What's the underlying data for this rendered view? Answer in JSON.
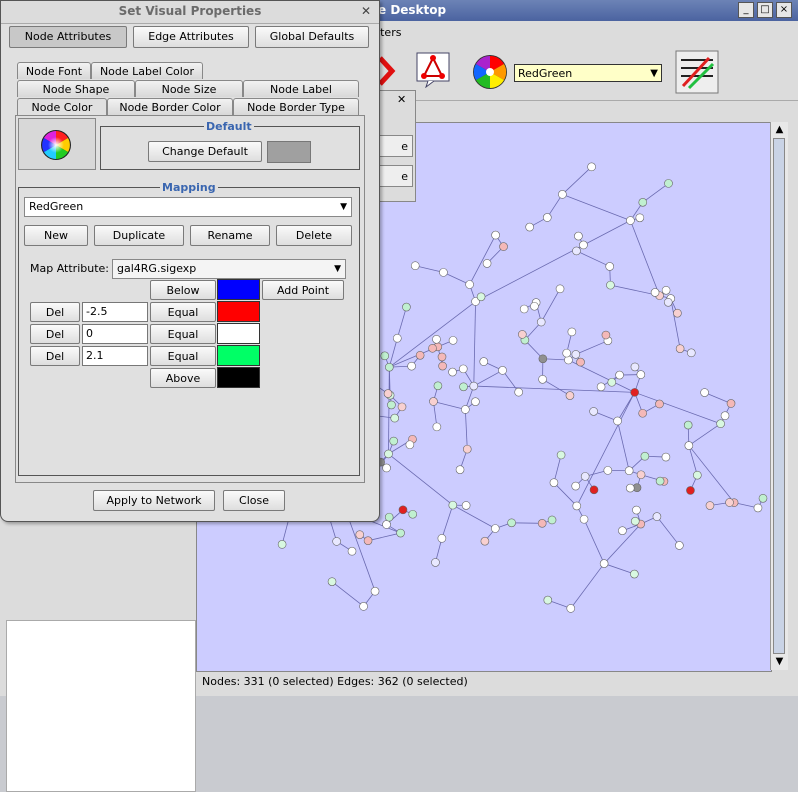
{
  "background_window": {
    "title": "e Desktop",
    "menu_item": "ilters",
    "visual_style": "RedGreen",
    "status": "Nodes: 331 (0 selected) Edges: 362 (0 selected)",
    "mini_dialog_buttons": [
      "e",
      "e"
    ]
  },
  "dialog": {
    "title": "Set Visual Properties",
    "top_buttons": [
      "Node Attributes",
      "Edge Attributes",
      "Global Defaults"
    ],
    "tabs_row1": [
      "Node Font",
      "Node Label Color"
    ],
    "tabs_row2": [
      "Node Shape",
      "Node Size",
      "Node Label"
    ],
    "tabs_row3": [
      "Node Color",
      "Node Border Color",
      "Node Border Type"
    ],
    "default_title": "Default",
    "change_default": "Change Default",
    "default_color": "#a0a0a0",
    "mapping_title": "Mapping",
    "mapping_name": "RedGreen",
    "mapping_buttons": [
      "New",
      "Duplicate",
      "Rename",
      "Delete"
    ],
    "map_attribute_label": "Map Attribute:",
    "map_attribute_value": "gal4RG.sigexp",
    "below_label": "Below",
    "below_color": "#0000ff",
    "add_point": "Add Point",
    "points": [
      {
        "del": "Del",
        "value": "-2.5",
        "equal": "Equal",
        "color": "#ff0000"
      },
      {
        "del": "Del",
        "value": "0",
        "equal": "Equal",
        "color": "#ffffff"
      },
      {
        "del": "Del",
        "value": "2.1",
        "equal": "Equal",
        "color": "#00ff66"
      }
    ],
    "above_label": "Above",
    "above_color": "#000000",
    "apply": "Apply to Network",
    "close": "Close"
  }
}
